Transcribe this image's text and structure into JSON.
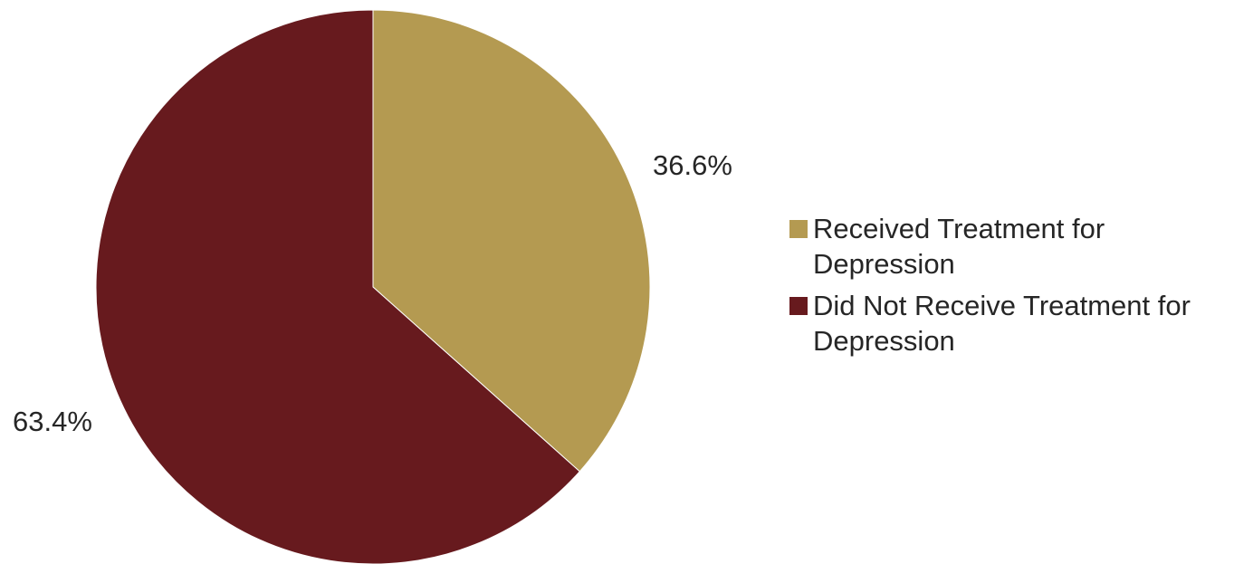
{
  "chart_data": {
    "type": "pie",
    "title": "",
    "categories": [
      "Received Treatment for Depression",
      "Did Not Receive Treatment for Depression"
    ],
    "values": [
      36.6,
      63.4
    ],
    "labels": [
      "36.6%",
      "63.4%"
    ],
    "colors": [
      "#B49A51",
      "#671A1E"
    ],
    "start_angle": "12 o'clock",
    "direction": "clockwise",
    "legend_position": "right"
  },
  "legend": {
    "items": [
      {
        "label": "Received Treatment for Depression",
        "color": "#B49A51"
      },
      {
        "label": "Did Not Receive Treatment for Depression",
        "color": "#671A1E"
      }
    ]
  }
}
